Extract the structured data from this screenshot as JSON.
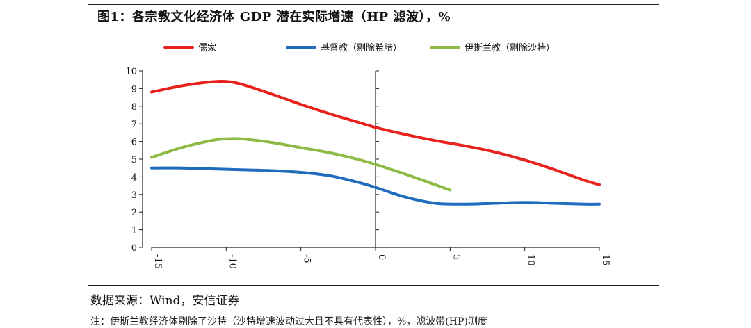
{
  "header": {
    "title": "图1：各宗教文化经济体 GDP 潜在实际增速（HP 滤波），%"
  },
  "footer": {
    "source": "数据来源：Wind，安信证券",
    "note": "注：伊斯兰教经济体剔除了沙特（沙特增速波动过大且不具有代表性），%，滤波带(HP)测度"
  },
  "colors": {
    "confucian": "#e8211c",
    "christian": "#1f6cbd",
    "islamic": "#8cba45"
  },
  "chart_data": {
    "type": "line",
    "title": "图1：各宗教文化经济体 GDP 潜在实际增速（HP 滤波），%",
    "xlabel": "",
    "ylabel": "",
    "xlim": [
      -15,
      15
    ],
    "ylim": [
      0,
      10
    ],
    "xticks": [
      -15,
      -10,
      -5,
      0,
      5,
      10,
      15
    ],
    "yticks": [
      0,
      1,
      2,
      3,
      4,
      5,
      6,
      7,
      8,
      9,
      10
    ],
    "x_tick_labels": [
      "-15",
      "-10",
      "-5",
      "0",
      "5",
      "10",
      "15"
    ],
    "y_tick_labels": [
      "0",
      "1",
      "2",
      "3",
      "4",
      "5",
      "6",
      "7",
      "8",
      "9",
      "10"
    ],
    "grid": false,
    "legend_position": "top",
    "series": [
      {
        "name": "儒家",
        "color": "#e8211c",
        "x": [
          -15,
          -13,
          -11,
          -10,
          -9,
          -7,
          -5,
          -3,
          -1,
          0,
          2,
          4,
          6,
          8,
          10,
          12,
          14,
          15
        ],
        "y": [
          8.8,
          9.15,
          9.38,
          9.4,
          9.25,
          8.7,
          8.1,
          7.55,
          7.05,
          6.8,
          6.4,
          6.05,
          5.75,
          5.4,
          4.95,
          4.4,
          3.8,
          3.55
        ]
      },
      {
        "name": "基督教（剔除希腊）",
        "color": "#1f6cbd",
        "x": [
          -15,
          -13,
          -11,
          -9,
          -7,
          -5,
          -3,
          -1,
          0,
          2,
          4,
          6,
          8,
          10,
          12,
          14,
          15
        ],
        "y": [
          4.5,
          4.5,
          4.45,
          4.4,
          4.35,
          4.25,
          4.05,
          3.65,
          3.4,
          2.85,
          2.5,
          2.45,
          2.5,
          2.55,
          2.5,
          2.45,
          2.45
        ]
      },
      {
        "name": "伊斯兰教（剔除沙特）",
        "color": "#8cba45",
        "x": [
          -15,
          -13,
          -11,
          -10,
          -9,
          -7,
          -5,
          -3,
          -1,
          0,
          2,
          4,
          5
        ],
        "y": [
          5.1,
          5.65,
          6.05,
          6.15,
          6.15,
          5.95,
          5.65,
          5.35,
          4.95,
          4.7,
          4.15,
          3.55,
          3.25
        ]
      }
    ]
  }
}
